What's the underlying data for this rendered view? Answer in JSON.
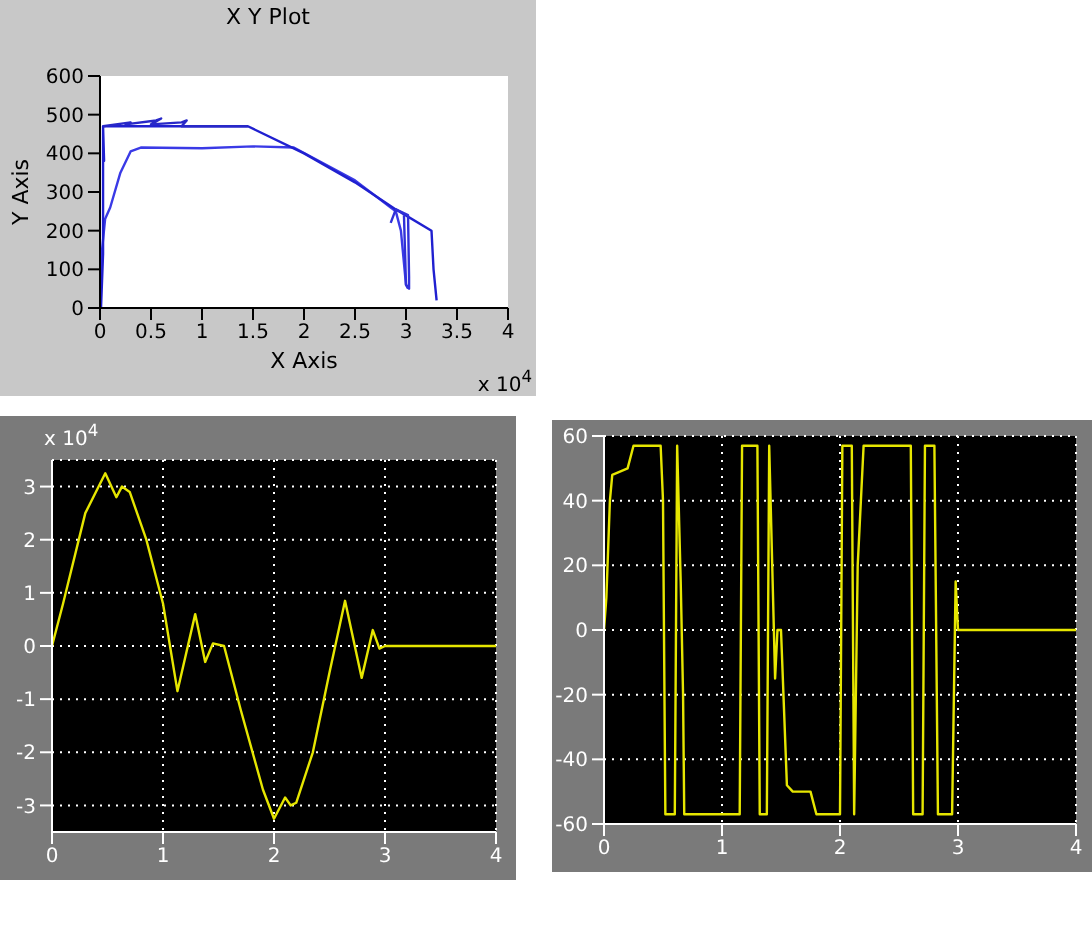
{
  "chart_data": [
    {
      "type": "line",
      "title": "X Y Plot",
      "xlabel": "X Axis",
      "ylabel": "Y Axis",
      "annotations": [
        "x 10$^{4}$"
      ],
      "xlim": [
        0,
        4
      ],
      "xticks": [
        0,
        0.5,
        1,
        1.5,
        2,
        2.5,
        3,
        3.5,
        4
      ],
      "ylim": [
        0,
        600
      ],
      "yticks": [
        0,
        100,
        200,
        300,
        400,
        500,
        600
      ],
      "grid": false,
      "marker": "none",
      "line_style": "solid",
      "series": [
        {
          "color": "#3a3ae6",
          "x": [
            0,
            0.02,
            0.05,
            0.1,
            0.2,
            0.3,
            0.4,
            1.0,
            1.5,
            1.9,
            2.5,
            2.85,
            2.9,
            2.95,
            3.0,
            3.02
          ],
          "values": [
            0,
            150,
            230,
            260,
            350,
            405,
            415,
            413,
            418,
            415,
            330,
            260,
            250,
            200,
            60,
            50
          ]
        },
        {
          "color": "#2020d0",
          "x": [
            0.01,
            0.03,
            0.03,
            0.04,
            0.03,
            0.05,
            1.45,
            2.0,
            2.5,
            2.9,
            3.25,
            3.27,
            3.3
          ],
          "values": [
            0,
            140,
            470,
            380,
            470,
            470,
            470,
            400,
            325,
            255,
            200,
            100,
            20
          ]
        },
        {
          "color": "#2828c8",
          "x": [
            0.03,
            0.3,
            0.25,
            0.55,
            0.6,
            0.5,
            0.8,
            0.85,
            0.8,
            1.45
          ],
          "values": [
            470,
            480,
            475,
            485,
            490,
            475,
            480,
            485,
            470,
            470
          ]
        },
        {
          "color": "#3030d8",
          "x": [
            2.85,
            2.9,
            3.02,
            3.03,
            3.03,
            3.0,
            2.98
          ],
          "values": [
            220,
            255,
            240,
            80,
            50,
            60,
            240
          ]
        }
      ]
    },
    {
      "type": "line",
      "annotations": [
        "x 10$^{4}$"
      ],
      "xlim": [
        0,
        4
      ],
      "xticks": [
        0,
        1,
        2,
        3,
        4
      ],
      "ylim": [
        -3.5,
        3.5
      ],
      "yticks": [
        -3,
        -2,
        -1,
        0,
        1,
        2,
        3
      ],
      "grid": true,
      "marker": "none",
      "line_style": "solid",
      "series": [
        {
          "color": "#e6e600",
          "x": [
            0,
            0.1,
            0.3,
            0.48,
            0.58,
            0.63,
            0.7,
            0.85,
            1.0,
            1.13,
            1.29,
            1.38,
            1.45,
            1.55,
            1.7,
            1.9,
            2.0,
            2.1,
            2.15,
            2.2,
            2.35,
            2.5,
            2.64,
            2.79,
            2.89,
            2.95,
            3.0,
            4
          ],
          "values": [
            0,
            0.8,
            2.5,
            3.25,
            2.8,
            3.0,
            2.9,
            2.0,
            0.8,
            -0.85,
            0.6,
            -0.3,
            0.05,
            0,
            -1.2,
            -2.7,
            -3.25,
            -2.85,
            -3.0,
            -2.95,
            -2.0,
            -0.5,
            0.85,
            -0.6,
            0.3,
            -0.05,
            0,
            0
          ]
        }
      ]
    },
    {
      "type": "line",
      "xlim": [
        0,
        4
      ],
      "xticks": [
        0,
        1,
        2,
        3,
        4
      ],
      "ylim": [
        -60,
        60
      ],
      "yticks": [
        -60,
        -40,
        -20,
        0,
        20,
        40,
        60
      ],
      "grid": true,
      "marker": "none",
      "line_style": "solid",
      "series": [
        {
          "color": "#e6e600",
          "x": [
            0,
            0.02,
            0.05,
            0.07,
            0.2,
            0.25,
            0.48,
            0.5,
            0.52,
            0.6,
            0.62,
            0.65,
            0.67,
            0.68,
            1.15,
            1.17,
            1.3,
            1.32,
            1.38,
            1.4,
            1.45,
            1.47,
            1.5,
            1.55,
            1.6,
            1.75,
            1.8,
            2.0,
            2.02,
            2.1,
            2.12,
            2.15,
            2.2,
            2.6,
            2.62,
            2.7,
            2.72,
            2.8,
            2.83,
            2.95,
            2.98,
            3.0,
            4
          ],
          "values": [
            0,
            10,
            40,
            48,
            50,
            57,
            57,
            40,
            -57,
            -57,
            57,
            15,
            -20,
            -57,
            -57,
            57,
            57,
            -57,
            -57,
            57,
            -15,
            0,
            0,
            -48,
            -50,
            -50,
            -57,
            -57,
            57,
            57,
            -57,
            20,
            57,
            57,
            -57,
            -57,
            57,
            57,
            -57,
            -57,
            15,
            0,
            0
          ]
        }
      ]
    }
  ]
}
